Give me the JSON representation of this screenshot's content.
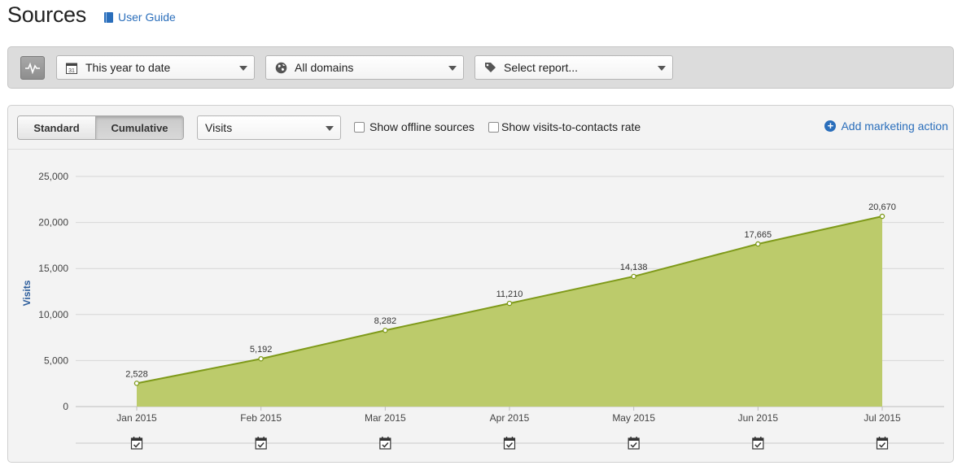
{
  "header": {
    "title": "Sources",
    "user_guide": "User Guide"
  },
  "filters": {
    "date_range": "This year to date",
    "domains": "All domains",
    "report": "Select report..."
  },
  "toolbar": {
    "view_standard": "Standard",
    "view_cumulative": "Cumulative",
    "active_view": "Cumulative",
    "metric": "Visits",
    "show_offline": "Show offline sources",
    "show_rate": "Show visits-to-contacts rate",
    "add_action": "Add marketing action"
  },
  "chart_data": {
    "type": "area",
    "categories": [
      "Jan 2015",
      "Feb 2015",
      "Mar 2015",
      "Apr 2015",
      "May 2015",
      "Jun 2015",
      "Jul 2015"
    ],
    "values": [
      2528,
      5192,
      8282,
      11210,
      14138,
      17665,
      20670
    ],
    "data_labels": [
      "2,528",
      "5,192",
      "8,282",
      "11,210",
      "14,138",
      "17,665",
      "20,670"
    ],
    "ylabel": "Visits",
    "yticks": [
      0,
      5000,
      10000,
      15000,
      20000,
      25000
    ],
    "ytick_labels": [
      "0",
      "5,000",
      "10,000",
      "15,000",
      "20,000",
      "25,000"
    ],
    "ylim": [
      0,
      25000
    ],
    "grid": true,
    "colors": {
      "fill": "#bccb6b",
      "line": "#7f9a1a"
    }
  }
}
